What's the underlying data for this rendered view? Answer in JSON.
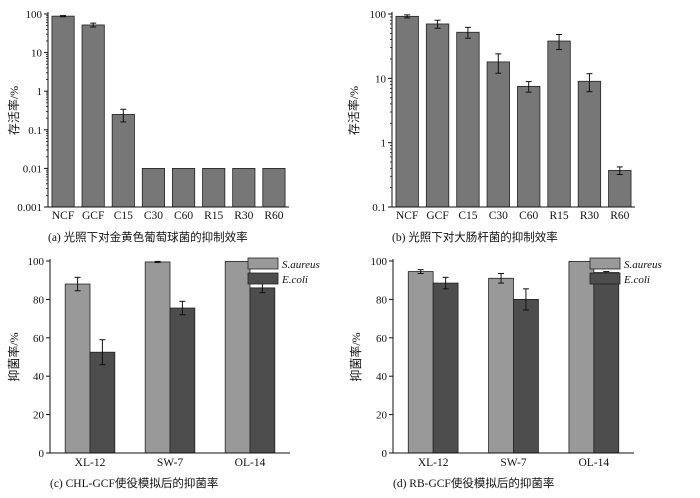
{
  "chart_data": [
    {
      "type": "bar",
      "yscale": "log",
      "ylim": [
        0.001,
        100
      ],
      "yticks": [
        "0.001",
        "0.01",
        "0.1",
        "1",
        "10",
        "100"
      ],
      "ylabel": "存活率/%",
      "categories": [
        "NCF",
        "GCF",
        "C15",
        "C30",
        "C60",
        "R15",
        "R30",
        "R60"
      ],
      "values": [
        88,
        52,
        0.25,
        0.01,
        0.01,
        0.01,
        0.01,
        0.01
      ],
      "errors": [
        3,
        6,
        0.09,
        0,
        0,
        0,
        0,
        0
      ],
      "color": "#777777",
      "caption": "(a)  光照下对金黄色葡萄球菌的抑制效率"
    },
    {
      "type": "bar",
      "yscale": "log",
      "ylim": [
        0.1,
        100
      ],
      "yticks": [
        "0.1",
        "1",
        "10",
        "100"
      ],
      "ylabel": "存活率/%",
      "categories": [
        "NCF",
        "GCF",
        "C15",
        "C30",
        "C60",
        "R15",
        "R30",
        "R60"
      ],
      "values": [
        92,
        70,
        52,
        18,
        7.5,
        38,
        9,
        0.37
      ],
      "errors": [
        5,
        10,
        10,
        6,
        1.4,
        10,
        2.8,
        0.05
      ],
      "color": "#777777",
      "caption": "(b)  光照下对大肠杆菌的抑制效率"
    },
    {
      "type": "bar",
      "ylim": [
        0,
        100
      ],
      "yticks": [
        "0",
        "20",
        "40",
        "60",
        "80",
        "100"
      ],
      "ylabel": "抑菌率/%",
      "categories": [
        "XL-12",
        "SW-7",
        "OL-14"
      ],
      "series": [
        {
          "name": "S.aureus",
          "values": [
            88,
            99.5,
            99.8
          ],
          "errors": [
            3.5,
            0.3,
            0
          ],
          "color": "#999999"
        },
        {
          "name": "E.coli",
          "values": [
            52.5,
            75.5,
            86
          ],
          "errors": [
            6.5,
            3.5,
            2.5
          ],
          "color": "#4d4d4d"
        }
      ],
      "caption": "(c)  CHL-GCF使役模拟后的抑菌率"
    },
    {
      "type": "bar",
      "ylim": [
        0,
        100
      ],
      "yticks": [
        "0",
        "20",
        "40",
        "60",
        "80",
        "100"
      ],
      "ylabel": "抑菌率/%",
      "categories": [
        "XL-12",
        "SW-7",
        "OL-14"
      ],
      "series": [
        {
          "name": "S.aureus",
          "values": [
            94.5,
            91,
            99.8
          ],
          "errors": [
            1,
            2.5,
            0
          ],
          "color": "#999999"
        },
        {
          "name": "E.coli",
          "values": [
            88.5,
            80,
            94
          ],
          "errors": [
            3,
            5.5,
            0.5
          ],
          "color": "#4d4d4d"
        }
      ],
      "caption": "(d)  RB-GCF使役模拟后的抑菌率"
    }
  ]
}
